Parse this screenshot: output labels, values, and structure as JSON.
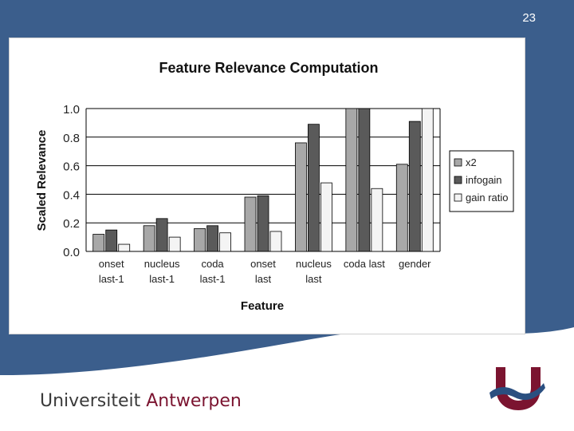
{
  "slide_number": "23",
  "footer": {
    "brand_first": "Universiteit",
    "brand_second": " Antwerpen"
  },
  "colors": {
    "background_blue": "#3b5e8c",
    "x2": "#a8a8a8",
    "infogain": "#5a5a5a",
    "gain_ratio": "#f4f4f4",
    "logo_burgundy": "#7b1430",
    "logo_blue": "#2a4f80"
  },
  "chart_data": {
    "type": "bar",
    "title": "Feature Relevance Computation",
    "xlabel": "Feature",
    "ylabel": "Scaled Relevance",
    "ylim": [
      0,
      1.0
    ],
    "yticks": [
      "0.0",
      "0.2",
      "0.4",
      "0.6",
      "0.8",
      "1.0"
    ],
    "grid": true,
    "legend_position": "right",
    "categories": [
      [
        "onset",
        "last-1"
      ],
      [
        "nucleus",
        "last-1"
      ],
      [
        "coda",
        "last-1"
      ],
      [
        "onset",
        "last"
      ],
      [
        "nucleus",
        "last"
      ],
      [
        "coda last"
      ],
      [
        "gender"
      ]
    ],
    "series": [
      {
        "name": "x2",
        "color": "#a8a8a8",
        "values": [
          0.12,
          0.18,
          0.16,
          0.38,
          0.76,
          1.0,
          0.61
        ]
      },
      {
        "name": "infogain",
        "color": "#5a5a5a",
        "values": [
          0.15,
          0.23,
          0.18,
          0.39,
          0.89,
          1.0,
          0.91
        ]
      },
      {
        "name": "gain ratio",
        "color": "#f4f4f4",
        "values": [
          0.05,
          0.1,
          0.13,
          0.14,
          0.48,
          0.44,
          1.0
        ]
      }
    ]
  }
}
